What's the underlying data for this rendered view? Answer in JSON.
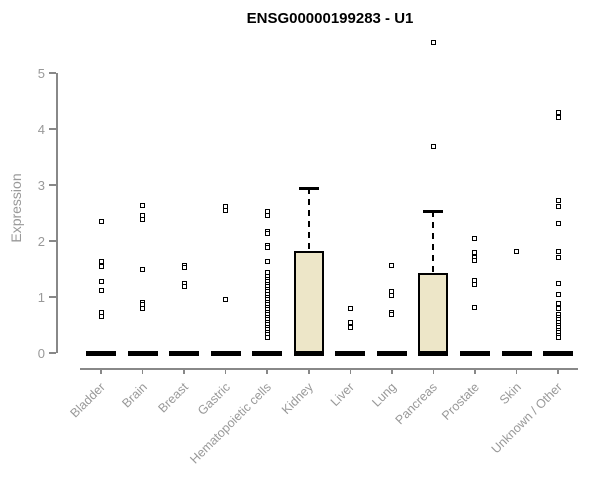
{
  "title": "ENSG00000199283 - U1",
  "chart_data": {
    "type": "boxplot",
    "title": "ENSG00000199283 - U1",
    "xlabel": "",
    "ylabel": "Expression",
    "ylim": [
      0,
      5
    ],
    "yticks": [
      0,
      1,
      2,
      3,
      4,
      5
    ],
    "grid": false,
    "box_fill_color": "#EDE6C8",
    "box_border_color": "#000000",
    "axis_color": "#888888",
    "tick_text_color": "#999999",
    "categories": [
      "Bladder",
      "Brain",
      "Breast",
      "Gastric",
      "Hematopoietic cells",
      "Kidney",
      "Liver",
      "Lung",
      "Pancreas",
      "Prostate",
      "Skin",
      "Unknown / Other"
    ],
    "boxes": [
      {
        "label": "Bladder",
        "q1": 0,
        "median": 0,
        "q3": 0,
        "whisker_low": 0,
        "whisker_high": 0,
        "outliers": [
          2.35,
          1.64,
          1.55,
          1.27,
          1.11,
          0.73,
          0.66
        ]
      },
      {
        "label": "Brain",
        "q1": 0,
        "median": 0,
        "q3": 0,
        "whisker_low": 0,
        "whisker_high": 0,
        "outliers": [
          2.63,
          2.45,
          2.38,
          1.5,
          0.91,
          0.86,
          0.79
        ]
      },
      {
        "label": "Breast",
        "q1": 0,
        "median": 0,
        "q3": 0,
        "whisker_low": 0,
        "whisker_high": 0,
        "outliers": [
          1.57,
          1.53,
          1.25,
          1.18
        ]
      },
      {
        "label": "Gastric",
        "q1": 0,
        "median": 0,
        "q3": 0,
        "whisker_low": 0,
        "whisker_high": 0,
        "outliers": [
          2.61,
          2.54,
          0.95
        ]
      },
      {
        "label": "Hematopoietic cells",
        "q1": 0,
        "median": 0,
        "q3": 0,
        "whisker_low": 0,
        "whisker_high": 0,
        "outliers": [
          2.52,
          2.46,
          2.17,
          2.13,
          1.92,
          1.88,
          1.63,
          1.43,
          1.36,
          1.32,
          1.27,
          1.23,
          1.18,
          1.14,
          1.09,
          1.05,
          1.0,
          0.96,
          0.91,
          0.87,
          0.82,
          0.78,
          0.73,
          0.69,
          0.64,
          0.6,
          0.55,
          0.51,
          0.46,
          0.42,
          0.37,
          0.33,
          0.28
        ]
      },
      {
        "label": "Kidney",
        "q1": 0,
        "median": 0,
        "q3": 1.82,
        "whisker_low": 0,
        "whisker_high": 2.95,
        "outliers": []
      },
      {
        "label": "Liver",
        "q1": 0,
        "median": 0,
        "q3": 0,
        "whisker_low": 0,
        "whisker_high": 0,
        "outliers": [
          0.79,
          0.55,
          0.45
        ]
      },
      {
        "label": "Lung",
        "q1": 0,
        "median": 0,
        "q3": 0,
        "whisker_low": 0,
        "whisker_high": 0,
        "outliers": [
          1.57,
          1.09,
          1.02,
          0.73,
          0.69
        ]
      },
      {
        "label": "Pancreas",
        "q1": 0,
        "median": 0,
        "q3": 1.43,
        "whisker_low": 0,
        "whisker_high": 2.54,
        "outliers": [
          5.55,
          3.68
        ]
      },
      {
        "label": "Prostate",
        "q1": 0,
        "median": 0,
        "q3": 0,
        "whisker_low": 0,
        "whisker_high": 0,
        "outliers": [
          2.04,
          1.79,
          1.71,
          1.66,
          1.3,
          1.23,
          0.82
        ]
      },
      {
        "label": "Skin",
        "q1": 0,
        "median": 0,
        "q3": 0,
        "whisker_low": 0,
        "whisker_high": 0,
        "outliers": [
          1.82
        ]
      },
      {
        "label": "Unknown / Other",
        "q1": 0,
        "median": 0,
        "q3": 0,
        "whisker_low": 0,
        "whisker_high": 0,
        "outliers": [
          4.29,
          4.21,
          2.73,
          2.61,
          2.32,
          1.82,
          1.7,
          1.25,
          1.05,
          0.88,
          0.8,
          0.68,
          0.64,
          0.59,
          0.55,
          0.5,
          0.46,
          0.41,
          0.37,
          0.32,
          0.28
        ]
      }
    ]
  }
}
